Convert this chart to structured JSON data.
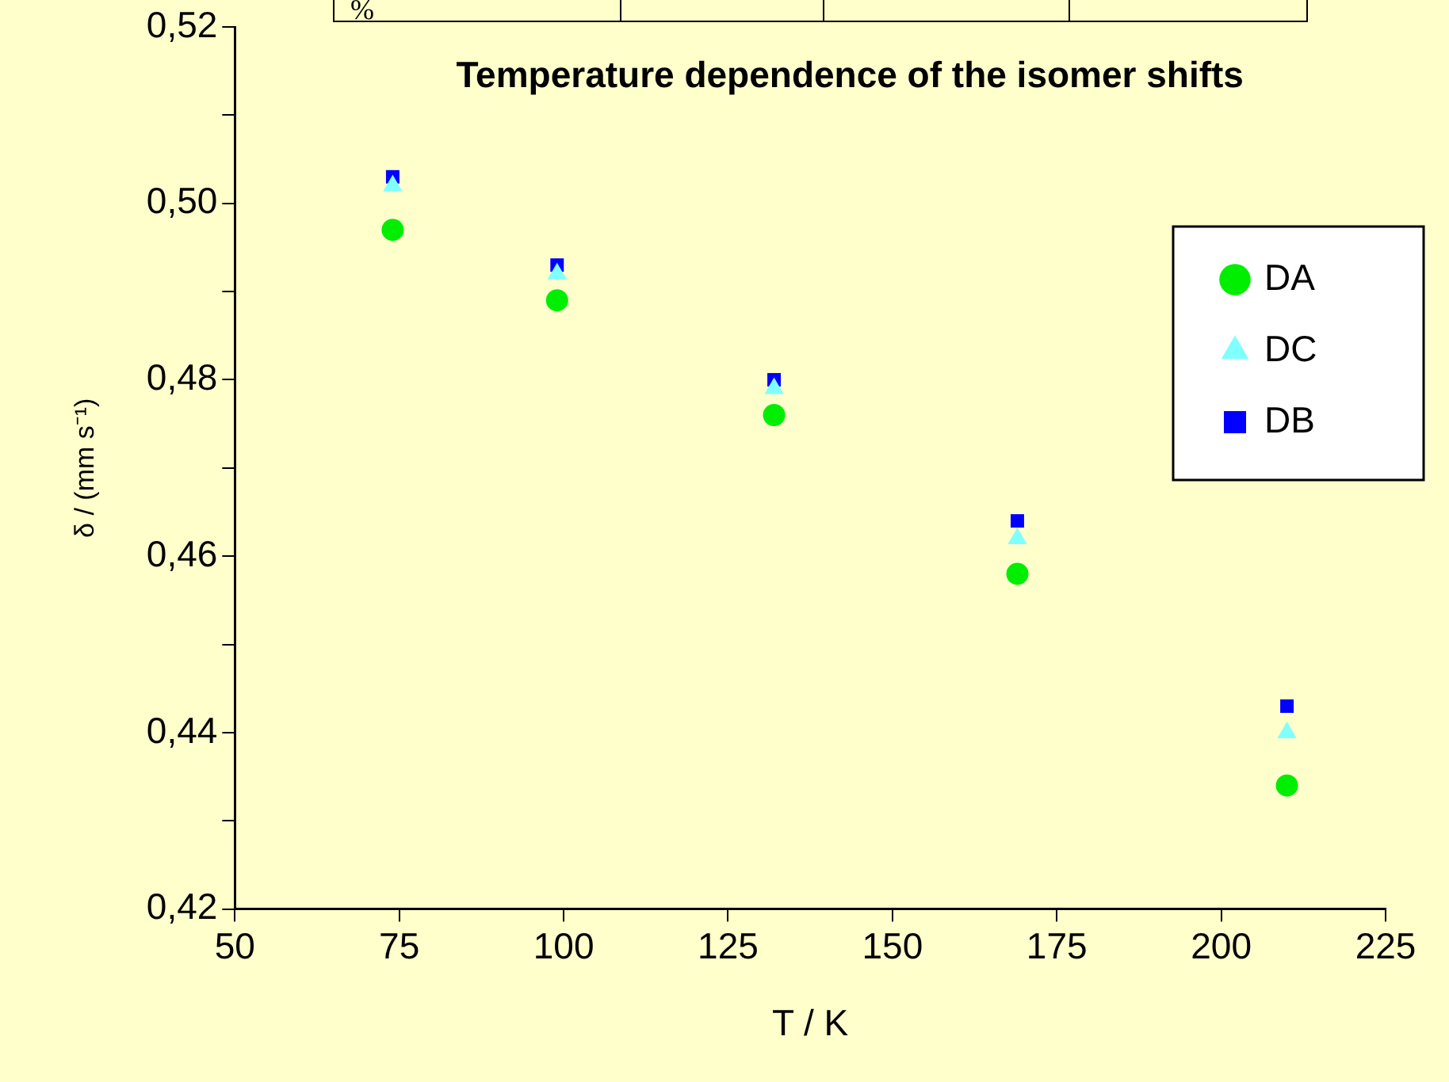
{
  "chart_data": {
    "type": "scatter",
    "title": "Temperature dependence of the isomer shifts",
    "xlabel": "T / K",
    "ylabel": "δ / (mm s⁻¹)",
    "x": [
      74,
      99,
      132,
      169,
      210
    ],
    "series": [
      {
        "name": "DA",
        "color": "#00ee00",
        "marker": "circle",
        "values": [
          0.497,
          0.489,
          0.476,
          0.458,
          0.434
        ]
      },
      {
        "name": "DC",
        "color": "#80ffff",
        "marker": "triangle",
        "values": [
          0.502,
          0.492,
          0.479,
          0.462,
          0.44
        ]
      },
      {
        "name": "DB",
        "color": "#0000ff",
        "marker": "square",
        "values": [
          0.503,
          0.493,
          0.48,
          0.464,
          0.443
        ]
      }
    ],
    "xlim": [
      50,
      225
    ],
    "xticks": [
      50,
      75,
      100,
      125,
      150,
      175,
      200,
      225
    ],
    "ylim": [
      0.42,
      0.52
    ],
    "yticks": [
      {
        "value": 0.42,
        "label": "0,42"
      },
      {
        "value": 0.43,
        "label": null
      },
      {
        "value": 0.44,
        "label": "0,44"
      },
      {
        "value": 0.45,
        "label": null
      },
      {
        "value": 0.46,
        "label": "0,46"
      },
      {
        "value": 0.47,
        "label": null
      },
      {
        "value": 0.48,
        "label": "0,48"
      },
      {
        "value": 0.49,
        "label": null
      },
      {
        "value": 0.5,
        "label": "0,50"
      },
      {
        "value": 0.51,
        "label": null
      },
      {
        "value": 0.52,
        "label": "0,52"
      }
    ],
    "legend": "right",
    "grid": false,
    "annotations": [
      "%"
    ]
  }
}
